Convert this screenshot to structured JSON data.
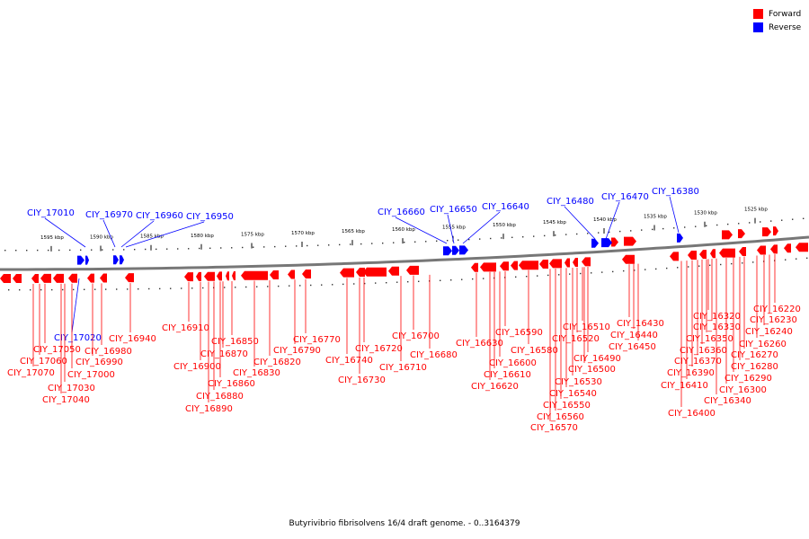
{
  "legend": {
    "forward_label": "Forward",
    "reverse_label": "Reverse",
    "forward_color": "#ff0000",
    "reverse_color": "#0000ff"
  },
  "caption": "Butyrivibrio fibrisolvens 16/4 draft genome. - 0..3164379",
  "ruler": {
    "ticks": [
      "1595 kbp",
      "1590 kbp",
      "1585 kbp",
      "1580 kbp",
      "1575 kbp",
      "1570 kbp",
      "1565 kbp",
      "1560 kbp",
      "1555 kbp",
      "1550 kbp",
      "1545 kbp",
      "1540 kbp",
      "1535 kbp",
      "1530 kbp",
      "1525 kbp"
    ]
  },
  "reverse_genes": [
    "CIY_17010",
    "CIY_16970",
    "CIY_16960",
    "CIY_16950",
    "CIY_16660",
    "CIY_16650",
    "CIY_16640",
    "CIY_16480",
    "CIY_16470",
    "CIY_16380",
    "CIY_17020"
  ],
  "forward_genes": [
    "CIY_17050",
    "CIY_17060",
    "CIY_17070",
    "CIY_17030",
    "CIY_17040",
    "CIY_16990",
    "CIY_17000",
    "CIY_16980",
    "CIY_16940",
    "CIY_16910",
    "CIY_16900",
    "CIY_16850",
    "CIY_16870",
    "CIY_16860",
    "CIY_16880",
    "CIY_16890",
    "CIY_16830",
    "CIY_16820",
    "CIY_16770",
    "CIY_16790",
    "CIY_16740",
    "CIY_16720",
    "CIY_16730",
    "CIY_16710",
    "CIY_16700",
    "CIY_16680",
    "CIY_16630",
    "CIY_16590",
    "CIY_16580",
    "CIY_16600",
    "CIY_16610",
    "CIY_16620",
    "CIY_16510",
    "CIY_16520",
    "CIY_16490",
    "CIY_16500",
    "CIY_16530",
    "CIY_16540",
    "CIY_16550",
    "CIY_16560",
    "CIY_16570",
    "CIY_16430",
    "CIY_16440",
    "CIY_16450",
    "CIY_16320",
    "CIY_16330",
    "CIY_16350",
    "CIY_16360",
    "CIY_16370",
    "CIY_16390",
    "CIY_16410",
    "CIY_16400",
    "CIY_16220",
    "CIY_16230",
    "CIY_16240",
    "CIY_16260",
    "CIY_16270",
    "CIY_16280",
    "CIY_16290",
    "CIY_16300",
    "CIY_16340"
  ]
}
